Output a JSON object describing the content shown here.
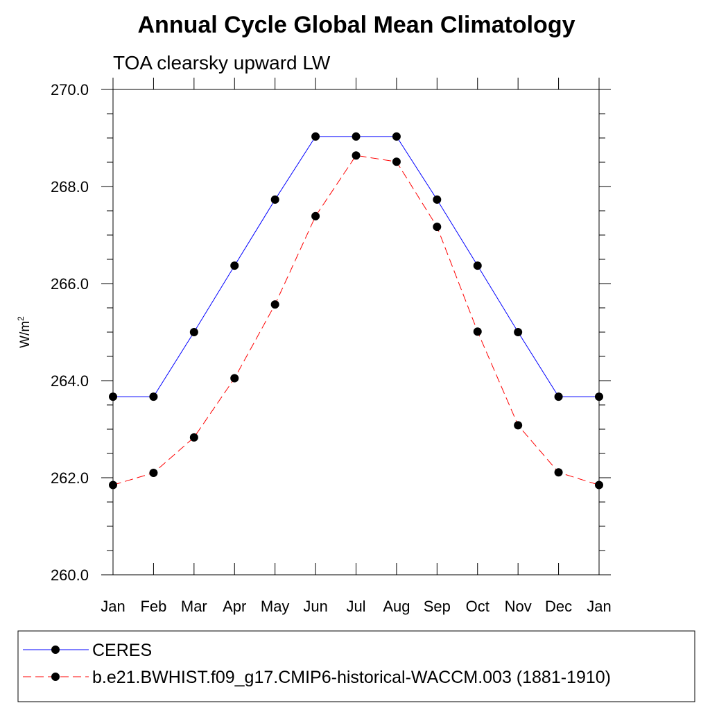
{
  "chart_data": {
    "type": "line",
    "title": "Annual Cycle Global Mean Climatology",
    "subtitle": "TOA clearsky upward LW",
    "ylabel_main": "W/m",
    "ylabel_sup": "2",
    "xlabel": "",
    "categories": [
      "Jan",
      "Feb",
      "Mar",
      "Apr",
      "May",
      "Jun",
      "Jul",
      "Aug",
      "Sep",
      "Oct",
      "Nov",
      "Dec",
      "Jan"
    ],
    "ylim": [
      260.0,
      270.0
    ],
    "yticks": [
      260.0,
      262.0,
      264.0,
      266.0,
      268.0,
      270.0
    ],
    "ytick_labels": [
      "260.0",
      "262.0",
      "264.0",
      "266.0",
      "268.0",
      "270.0"
    ],
    "grid": false,
    "legend_position": "bottom",
    "series": [
      {
        "name": "CERES",
        "color": "#0000ff",
        "dashed": false,
        "values": [
          263.67,
          263.67,
          265.0,
          266.37,
          267.73,
          269.03,
          269.03,
          269.03,
          267.73,
          266.37,
          265.0,
          263.67,
          263.67
        ]
      },
      {
        "name": "b.e21.BWHIST.f09_g17.CMIP6-historical-WACCM.003 (1881-1910)",
        "color": "#ff0000",
        "dashed": true,
        "values": [
          261.85,
          262.1,
          262.83,
          264.05,
          265.57,
          267.39,
          268.64,
          268.51,
          267.17,
          265.01,
          263.08,
          262.11,
          261.85
        ]
      }
    ]
  }
}
